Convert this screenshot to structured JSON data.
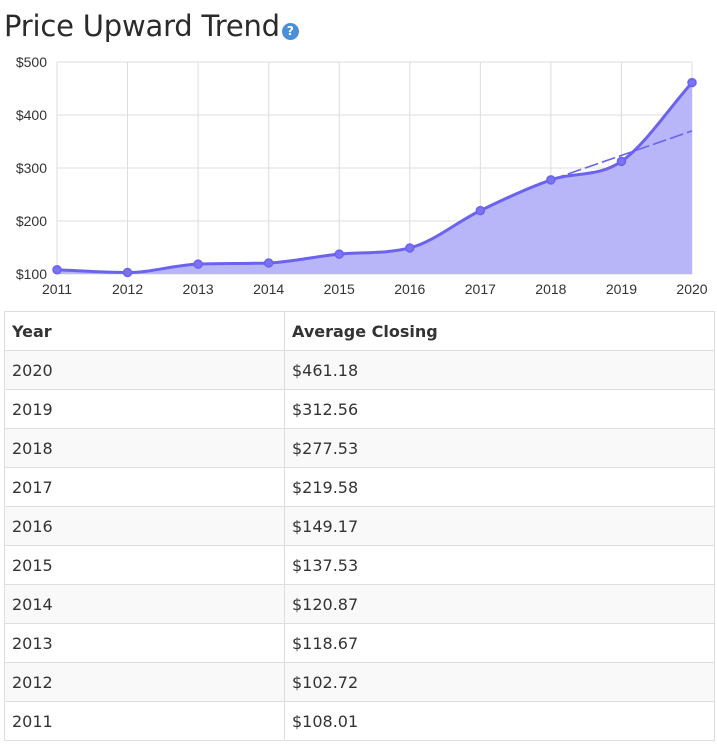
{
  "header": {
    "title": "Price Upward Trend",
    "help_icon": "question-circle-icon"
  },
  "colors": {
    "line": "#6b63f0",
    "fill": "#b8b6f8",
    "marker_fill": "#7a73f2",
    "grid": "#dddddd",
    "help_icon": "#4a90d9"
  },
  "chart_data": {
    "type": "area",
    "title": "",
    "xlabel": "",
    "ylabel": "",
    "x": [
      2011,
      2012,
      2013,
      2014,
      2015,
      2016,
      2017,
      2018,
      2019,
      2020
    ],
    "series": [
      {
        "values": [
          108.01,
          102.72,
          118.67,
          120.87,
          137.53,
          149.17,
          219.58,
          277.53,
          312.56,
          461.18
        ]
      }
    ],
    "trendline": {
      "style": "dashed",
      "from_x": 2018,
      "from_y": 277.53,
      "to_x": 2020,
      "to_y": 370
    },
    "ylim": [
      100,
      500
    ],
    "y_ticks": [
      100,
      200,
      300,
      400,
      500
    ],
    "y_tick_labels": [
      "$100",
      "$200",
      "$300",
      "$400",
      "$500"
    ],
    "x_tick_labels": [
      "2011",
      "2012",
      "2013",
      "2014",
      "2015",
      "2016",
      "2017",
      "2018",
      "2019",
      "2020"
    ],
    "grid": true,
    "legend": "none"
  },
  "table": {
    "headers": [
      "Year",
      "Average Closing"
    ],
    "rows": [
      [
        "2020",
        "$461.18"
      ],
      [
        "2019",
        "$312.56"
      ],
      [
        "2018",
        "$277.53"
      ],
      [
        "2017",
        "$219.58"
      ],
      [
        "2016",
        "$149.17"
      ],
      [
        "2015",
        "$137.53"
      ],
      [
        "2014",
        "$120.87"
      ],
      [
        "2013",
        "$118.67"
      ],
      [
        "2012",
        "$102.72"
      ],
      [
        "2011",
        "$108.01"
      ]
    ]
  }
}
